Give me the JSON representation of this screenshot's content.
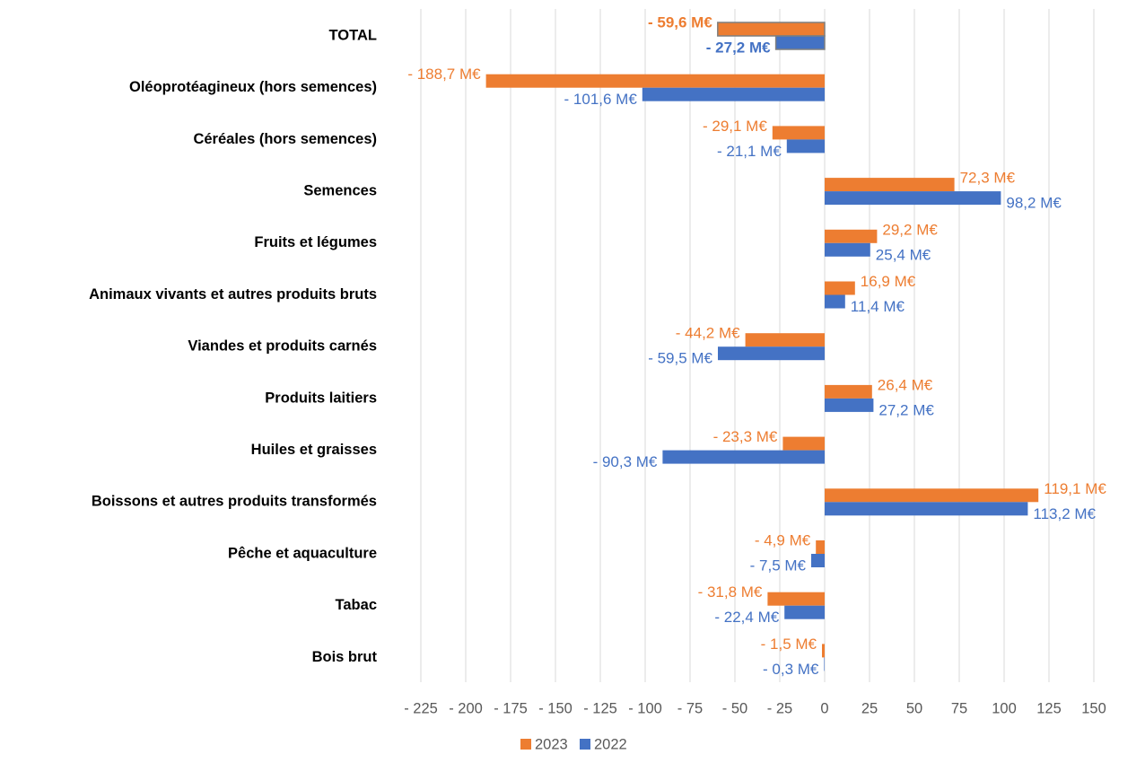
{
  "chart_data": {
    "type": "hbar",
    "categories": [
      "TOTAL",
      "Oléoprotéagineux (hors semences)",
      "Céréales (hors semences)",
      "Semences",
      "Fruits et légumes",
      "Animaux vivants et autres produits bruts",
      "Viandes et produits carnés",
      "Produits laitiers",
      "Huiles et graisses",
      "Boissons et autres produits transformés",
      "Pêche et aquaculture",
      "Tabac",
      "Bois brut"
    ],
    "series": [
      {
        "name": "2023",
        "color": "#ed7d31",
        "values": [
          -59.6,
          -188.7,
          -29.1,
          72.3,
          29.2,
          16.9,
          -44.2,
          26.4,
          -23.3,
          119.1,
          -4.9,
          -31.8,
          -1.5
        ],
        "value_labels": [
          "- 59,6 M€",
          "- 188,7 M€",
          "- 29,1 M€",
          "72,3 M€",
          "29,2 M€",
          "16,9 M€",
          "- 44,2 M€",
          "26,4 M€",
          "- 23,3 M€",
          "119,1 M€",
          "- 4,9 M€",
          "- 31,8 M€",
          "- 1,5 M€"
        ]
      },
      {
        "name": "2022",
        "color": "#4472c4",
        "values": [
          -27.2,
          -101.6,
          -21.1,
          98.2,
          25.4,
          11.4,
          -59.5,
          27.2,
          -90.3,
          113.2,
          -7.5,
          -22.4,
          -0.3
        ],
        "value_labels": [
          "- 27,2 M€",
          "- 101,6 M€",
          "- 21,1 M€",
          "98,2 M€",
          "25,4 M€",
          "11,4 M€",
          "- 59,5 M€",
          "27,2 M€",
          "- 90,3 M€",
          "113,2 M€",
          "- 7,5 M€",
          "- 22,4 M€",
          "- 0,3 M€"
        ]
      }
    ],
    "xlim": [
      -225,
      150
    ],
    "xticks": [
      {
        "value": -225,
        "label": "- 225"
      },
      {
        "value": -200,
        "label": "- 200"
      },
      {
        "value": -175,
        "label": "- 175"
      },
      {
        "value": -150,
        "label": "- 150"
      },
      {
        "value": -125,
        "label": "- 125"
      },
      {
        "value": -100,
        "label": "- 100"
      },
      {
        "value": -75,
        "label": "- 75"
      },
      {
        "value": -50,
        "label": "- 50"
      },
      {
        "value": -25,
        "label": "- 25"
      },
      0,
      25,
      50,
      75,
      100,
      125,
      150
    ],
    "grid": true,
    "legend": "bottom"
  }
}
